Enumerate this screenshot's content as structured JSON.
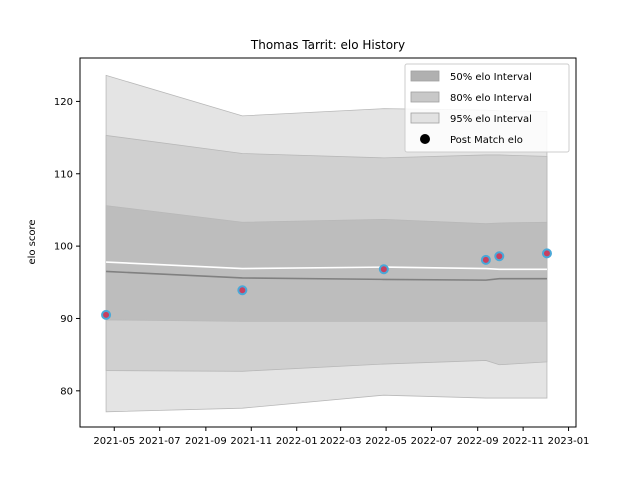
{
  "chart_data": {
    "type": "line",
    "title": "Thomas Tarrit: elo History",
    "xlabel": "",
    "ylabel": "elo score",
    "xlim": [
      "2021-03-16",
      "2023-01-11"
    ],
    "ylim": [
      75,
      126
    ],
    "grid": false,
    "legend_position": "top-right",
    "x_ticks": [
      "2021-05",
      "2021-07",
      "2021-09",
      "2021-11",
      "2022-01",
      "2022-03",
      "2022-05",
      "2022-07",
      "2022-09",
      "2022-11",
      "2023-01"
    ],
    "y_ticks": [
      80,
      90,
      100,
      110,
      120
    ],
    "legend": [
      {
        "label": "50% elo Interval",
        "kind": "band",
        "color": "#b0b0b0"
      },
      {
        "label": "80% elo Interval",
        "kind": "band",
        "color": "#c8c8c8"
      },
      {
        "label": "95% elo Interval",
        "kind": "band",
        "color": "#e2e2e2"
      },
      {
        "label": "Post Match elo",
        "kind": "marker",
        "color": "#000000"
      }
    ],
    "x": [
      "2021-04-20",
      "2021-10-20",
      "2022-04-28",
      "2022-09-12",
      "2022-09-30",
      "2022-12-03"
    ],
    "bands": [
      {
        "name": "95% elo Interval",
        "color": "#e4e4e4",
        "lower": [
          77.1,
          77.6,
          79.4,
          79.0,
          79.0,
          79.0
        ],
        "upper": [
          123.6,
          118.0,
          119.0,
          118.8,
          118.7,
          118.6
        ]
      },
      {
        "name": "80% elo Interval",
        "color": "#d0d0d0",
        "lower": [
          82.8,
          82.7,
          83.7,
          84.2,
          83.6,
          84.0
        ],
        "upper": [
          115.3,
          112.8,
          112.2,
          112.6,
          112.6,
          112.4
        ]
      },
      {
        "name": "50% elo Interval",
        "color": "#bdbdbd",
        "lower": [
          89.8,
          89.6,
          89.6,
          89.6,
          89.6,
          89.6
        ],
        "upper": [
          105.6,
          103.3,
          103.7,
          103.1,
          103.2,
          103.3
        ]
      }
    ],
    "lines": [
      {
        "name": "upper-mean",
        "color": "#ffffff",
        "values": [
          97.8,
          96.9,
          97.1,
          96.9,
          96.8,
          96.8
        ]
      },
      {
        "name": "mean",
        "color": "#808080",
        "values": [
          96.5,
          95.6,
          95.4,
          95.3,
          95.5,
          95.5
        ]
      }
    ],
    "points": {
      "name": "Post Match elo",
      "fill": "#c84060",
      "edge": "#4aa8d8",
      "values": [
        90.5,
        93.9,
        96.8,
        98.1,
        98.6,
        99.0
      ]
    }
  }
}
